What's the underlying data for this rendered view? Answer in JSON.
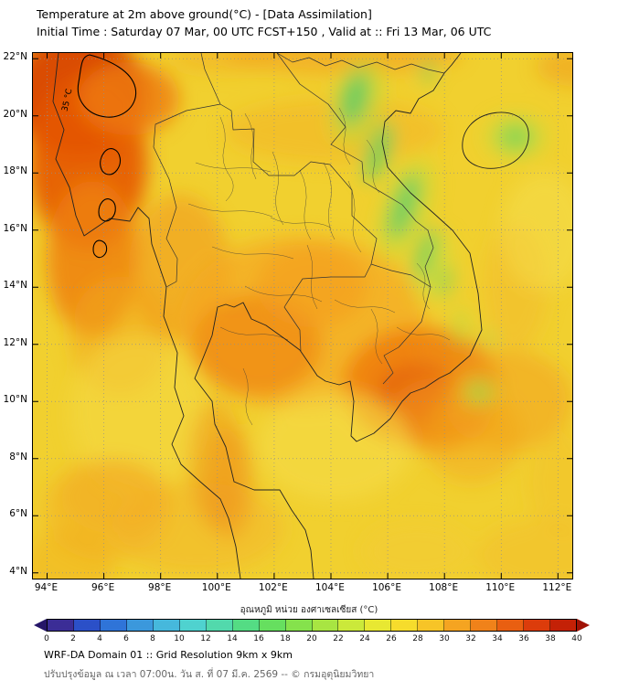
{
  "header": {
    "title": "Temperature at 2m above ground(°C) - [Data Assimilation]",
    "subtitle": "Initial Time : Saturday 07 Mar, 00 UTC FCST+150 , Valid at :: Fri 13 Mar, 06 UTC"
  },
  "map": {
    "x_ticks": [
      "94°E",
      "96°E",
      "98°E",
      "100°E",
      "102°E",
      "104°E",
      "106°E",
      "108°E",
      "110°E",
      "112°E"
    ],
    "y_ticks": [
      "22°N",
      "20°N",
      "18°N",
      "16°N",
      "14°N",
      "12°N",
      "10°N",
      "8°N",
      "6°N",
      "4°N"
    ],
    "contour_label": "35 °C"
  },
  "colorbar": {
    "label": "อุณหภูมิ หน่วย องศาเซลเซียส (°C)",
    "ticks": [
      "0",
      "2",
      "4",
      "6",
      "8",
      "10",
      "12",
      "14",
      "16",
      "18",
      "20",
      "22",
      "24",
      "26",
      "28",
      "30",
      "32",
      "34",
      "36",
      "38",
      "40"
    ],
    "colors": [
      "#3b2d96",
      "#2b50c8",
      "#2f74d8",
      "#3b98dc",
      "#46b8dc",
      "#4fd2cf",
      "#52d9ac",
      "#54dc84",
      "#66df5f",
      "#85e24c",
      "#a8e542",
      "#cbe93a",
      "#e8e832",
      "#f6dc2c",
      "#f7c427",
      "#f5a421",
      "#f0821a",
      "#e95f11",
      "#dc3c0b",
      "#c42106"
    ],
    "arrow_left_color": "#251668",
    "arrow_right_color": "#a01205"
  },
  "footer": {
    "line1": "WRF-DA Domain 01 :: Grid Resolution 9km x 9km",
    "line2": "ปรับปรุงข้อมูล ณ เวลา 07:00น. วัน ส. ที่ 07 มี.ค. 2569 -- © กรมอุตุนิยมวิทยา"
  },
  "chart_data": {
    "type": "heatmap",
    "title": "Temperature at 2m above ground (°C) - Data Assimilation, WRF-DA Domain 01",
    "x_axis": {
      "ticks": [
        "94°E",
        "96°E",
        "98°E",
        "100°E",
        "102°E",
        "104°E",
        "106°E",
        "108°E",
        "110°E",
        "112°E"
      ]
    },
    "y_axis": {
      "ticks": [
        "22°N",
        "20°N",
        "18°N",
        "16°N",
        "14°N",
        "12°N",
        "10°N",
        "8°N",
        "6°N",
        "4°N"
      ]
    },
    "colorbar_range_c": [
      0,
      40
    ],
    "colorbar_step_c": 2,
    "contour_labels": [
      "35 °C"
    ],
    "legend_label": "อุณหภูมิ หน่วย องศาเซลเซียส (°C)",
    "readings": [
      {
        "area": "Western Myanmar hills (NW corner, inside 35 °C contour)",
        "approx_temp_c": 35
      },
      {
        "area": "Central Thailand",
        "approx_temp_c": 33
      },
      {
        "area": "Cambodia / lower Mekong",
        "approx_temp_c": 34
      },
      {
        "area": "Annamite range, Vietnam (green band)",
        "approx_temp_c": 18
      },
      {
        "area": "Hainan highlands (green spot)",
        "approx_temp_c": 18
      },
      {
        "area": "Sea / background field",
        "approx_temp_c": 28
      }
    ]
  }
}
